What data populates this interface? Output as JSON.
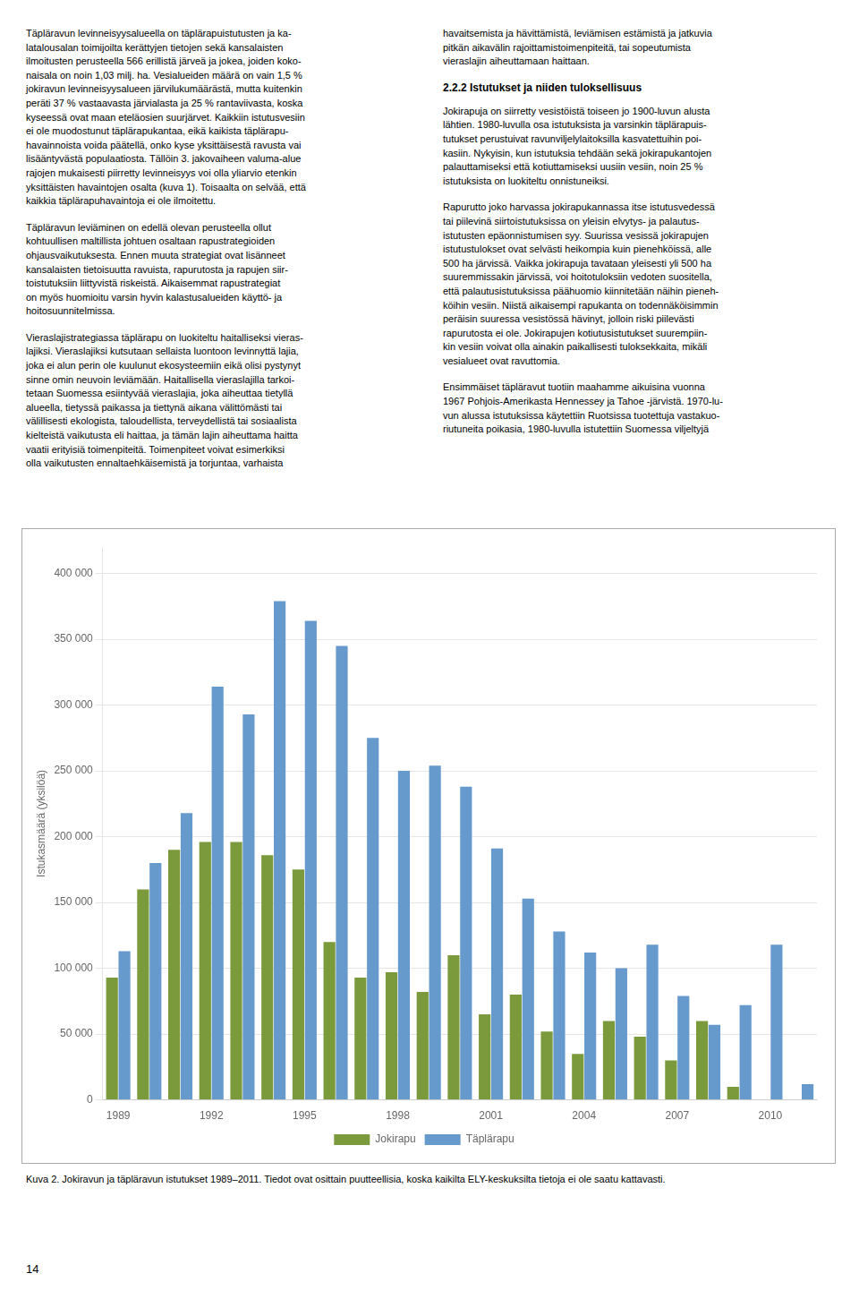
{
  "chart_data": {
    "type": "bar",
    "title": "Kuva 2. Jokiravun ja täpläravun istutukset 1989–2011. Tiedot ovat osittain puutteellisia, koska kaikilta ELY-keskuksilta tietoja ei ole saatu kattavasti.",
    "y_label": "Istukasmäärä (yksilöä)",
    "categories": [
      "1989",
      null,
      null,
      "1992",
      null,
      null,
      "1995",
      null,
      null,
      "1998",
      null,
      null,
      "2001",
      null,
      null,
      "2004",
      null,
      null,
      "2007",
      null,
      null,
      "2010",
      null
    ],
    "series": [
      {
        "name": "Jokirapu",
        "color": "#7a9a3b",
        "values": [
          93000,
          160000,
          190000,
          196000,
          196000,
          186000,
          175000,
          120000,
          93000,
          97000,
          82000,
          110000,
          65000,
          80000,
          52000,
          35000,
          60000,
          48000,
          30000,
          60000,
          10000,
          0,
          0
        ]
      },
      {
        "name": "Täplärapu",
        "color": "#6699cc",
        "values": [
          113000,
          180000,
          218000,
          314000,
          293000,
          379000,
          364000,
          345000,
          275000,
          250000,
          254000,
          238000,
          191000,
          153000,
          128000,
          112000,
          100000,
          118000,
          79000,
          57000,
          72000,
          118000,
          12000
        ]
      }
    ],
    "ylim": [
      0,
      420000
    ],
    "yticks": [
      0,
      {
        "value": 50000,
        "label": "50 000"
      },
      {
        "value": 100000,
        "label": "100 000"
      },
      {
        "value": 150000,
        "label": "150 000"
      },
      {
        "value": 200000,
        "label": "200 000"
      },
      {
        "value": 250000,
        "label": "250 000"
      },
      {
        "value": 300000,
        "label": "300 000"
      },
      {
        "value": 350000,
        "label": "350 000"
      },
      {
        "value": 400000,
        "label": "400 000"
      }
    ],
    "grid": true,
    "legend": "bottom",
    "annotations": [
      "Täpläravun levinneisyysalueella on täplärapuistutusten ja ka-\nlatalousalan toimijoilta kerättyjen tietojen sekä kansalaisten\nilmoitusten perusteella 566 erillistä järveä ja jokea, joiden koko-\nnaisala on noin 1,03 milj. ha. Vesialueiden määrä on vain 1,5 %\njokiravun levinneisyysalueen järvilukumäärästä, mutta kuitenkin\nperäti 37 % vastaavasta järvialasta ja 25 % rantaviivasta, koska\nkyseessä ovat maan eteläosien suurjärvet. Kaikkiin istutusvesiin\nei ole muodostunut täplärapukantaa, eikä kaikista täplärapu-\nhavainnoista voida päätellä, onko kyse yksittäisestä ravusta vai\nlisääntyvästä populaatiosta. Tällöin 3. jakovaiheen valuma-alue\nrajojen mukaisesti piirretty levinneisyys voi olla yliarvio etenkin\nyksittäisten havaintojen osalta (kuva 1). Toisaalta on selvää, että\nkaikkia täplärapuhavaintoja ei ole ilmoitettu.",
      "Täpläravun leviäminen on edellä olevan perusteella ollut\nkohtuullisen maltillista johtuen osaltaan rapustrategioiden\nohjausvaikutuksesta. Ennen muuta strategiat ovat lisänneet\nkansalaisten tietoisuutta ravuista, rapurutosta ja rapujen siir-\ntoistutuksiin liittyvistä riskeistä. Aikaisemmat rapustrategiat\non myös huomioitu varsin hyvin kalastusalueiden käyttö- ja\nhoitosuunnitelmissa.",
      "Vieraslajistrategiassa täplärapu on luokiteltu haitalliseksi vieras-\nlajiksi. Vieraslajiksi kutsutaan sellaista luontoon levinnyttä lajia,\njoka ei alun perin ole kuulunut ekosysteemiin eikä olisi pystynyt\nsinne omin neuvoin leviämään. Haitallisella vieraslajilla tarkoi-\ntetaan Suomessa esiintyvää vieraslajia, joka aiheuttaa tietyllä\nalueella, tietyssä paikassa ja tiettynä aikana välittömästi tai\nvälillisesti ekologista, taloudellista, terveydellistä tai sosiaalista\nkielteistä vaikutusta eli haittaa, ja tämän lajin aiheuttama haitta\nvaatii erityisiä toimenpiteitä. Toimenpiteet voivat esimerkiksi\nolla vaikutusten ennaltaehkäisemistä ja torjuntaa, varhaista",
      "havaitsemista ja hävittämistä, leviämisen estämistä ja jatkuvia\npitkän aikavälin rajoittamistoimenpiteitä, tai sopeutumista\nvieraslajin aiheuttamaan haittaan.",
      "2.2.2 Istutukset ja niiden tuloksellisuus",
      "Jokirapuja on siirretty vesistöistä toiseen jo 1900-luvun alusta\nlähtien. 1980-luvulla osa istutuksista ja varsinkin täplärapuis-\ntutukset perustuivat ravunviljelylaitoksilla kasvatettuihin poi-\nkasiin. Nykyisin, kun istutuksia tehdään sekä jokirapukantojen\npalauttamiseksi että kotiuttamiseksi uusiin vesiin, noin 25 %\nistutuksista on luokiteltu onnistuneiksi.",
      "Rapurutto joko harvassa jokirapukannassa itse istutusvedessä\ntai piilevinä siirtoistutuksissa on yleisin elvytys- ja palautus-\nistutusten epäonnistumisen syy. Suurissa vesissä jokirapujen\nistutustulokset ovat selvästi heikompia kuin pienehköissä, alle\n500 ha järvissä. Vaikka jokirapuja tavataan yleisesti yli 500 ha\nsuuremmissakin järvissä, voi hoitotuloksiin vedoten suositella,\nettä palautusistutuksissa päähuomio kiinnitetään näihin pieneh-\nköihin vesiin. Niistä aikaisempi rapukanta on todennäköisimmin\nperäisin suuressa vesistössä hävinyt, jolloin riski piilevästi\nrapurutosta ei ole. Jokirapujen kotiutusistutukset suurempiin-\nkin vesiin voivat olla ainakin paikallisesti tuloksekkaita, mikäli\nvesialueet ovat ravuttomia.",
      "Ensimmäiset täpläravut tuotiin maahamme aikuisina vuonna\n1967 Pohjois-Amerikasta Hennessey ja Tahoe -järvistä. 1970-lu-\nvun alussa istutuksissa käytettiin Ruotsissa tuotettuja vastakuo-\nriutuneita poikasia, 1980-luvulla istutettiin Suomessa viljeltyjä",
      "14"
    ]
  }
}
